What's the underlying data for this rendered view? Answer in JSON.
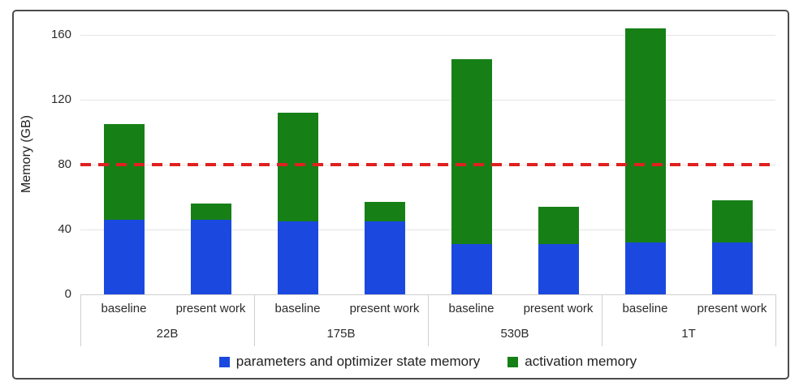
{
  "figure": {
    "kind": "stacked bar chart in bordered frame",
    "border_color": "#4c4c4c",
    "background": "#ffffff"
  },
  "chart_data": {
    "type": "bar",
    "stacked": true,
    "title": "",
    "xlabel": "",
    "ylabel": "Memory (GB)",
    "ylim": [
      0,
      170
    ],
    "yticks": [
      0,
      40,
      80,
      120,
      160
    ],
    "grid": true,
    "legend_position": "bottom",
    "reference_line": {
      "value": 80,
      "color": "#e02020",
      "style": "dashed"
    },
    "groups": [
      {
        "label": "22B",
        "bars": [
          {
            "label": "baseline",
            "parameters_and_optimizer_gb": 46,
            "activation_gb": 59,
            "total_gb": 105
          },
          {
            "label": "present work",
            "parameters_and_optimizer_gb": 46,
            "activation_gb": 10,
            "total_gb": 56
          }
        ]
      },
      {
        "label": "175B",
        "bars": [
          {
            "label": "baseline",
            "parameters_and_optimizer_gb": 45,
            "activation_gb": 67,
            "total_gb": 112
          },
          {
            "label": "present work",
            "parameters_and_optimizer_gb": 45,
            "activation_gb": 12,
            "total_gb": 57
          }
        ]
      },
      {
        "label": "530B",
        "bars": [
          {
            "label": "baseline",
            "parameters_and_optimizer_gb": 31,
            "activation_gb": 114,
            "total_gb": 145
          },
          {
            "label": "present work",
            "parameters_and_optimizer_gb": 31,
            "activation_gb": 23,
            "total_gb": 54
          }
        ]
      },
      {
        "label": "1T",
        "bars": [
          {
            "label": "baseline",
            "parameters_and_optimizer_gb": 32,
            "activation_gb": 132,
            "total_gb": 164
          },
          {
            "label": "present work",
            "parameters_and_optimizer_gb": 32,
            "activation_gb": 26,
            "total_gb": 58
          }
        ]
      }
    ],
    "legend": [
      {
        "label": "parameters and optimizer state memory",
        "color": "#1b49e0"
      },
      {
        "label": "activation memory",
        "color": "#168016"
      }
    ]
  }
}
